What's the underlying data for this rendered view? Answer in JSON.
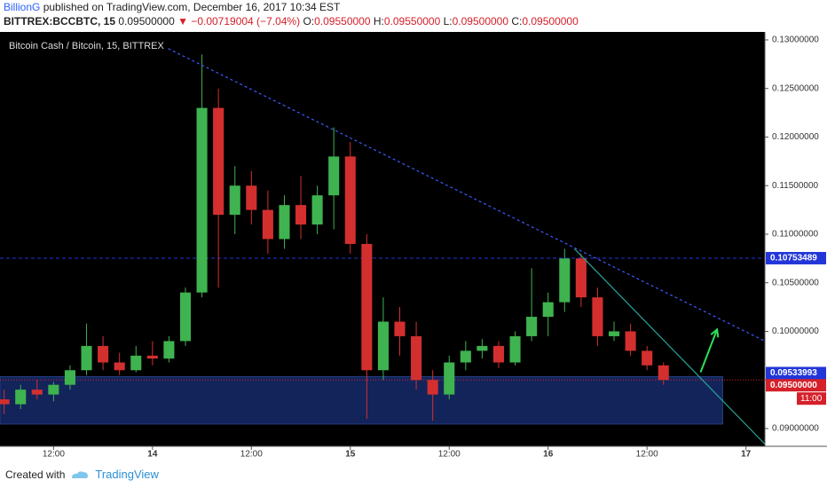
{
  "header": {
    "author": "BillionG",
    "published": "published on TradingView.com, December 16, 2017 10:34 EST",
    "symbol": "BITTREX:BCCBTC, 15",
    "last": "0.09500000",
    "change": "▼ −0.00719004 (−7.04%)",
    "ohlc": [
      {
        "label": "O:",
        "value": "0.09550000"
      },
      {
        "label": "H:",
        "value": "0.09550000"
      },
      {
        "label": "L:",
        "value": "0.09500000"
      },
      {
        "label": "C:",
        "value": "0.09500000"
      }
    ]
  },
  "chart_data": {
    "type": "candlestick",
    "title": "Bitcoin Cash / Bitcoin, 15, BITTREX",
    "x": [
      -18,
      -16,
      -14,
      -12,
      -10,
      -8,
      -6,
      -4,
      -2,
      0,
      2,
      4,
      6,
      8,
      10,
      12,
      14,
      16,
      18,
      20,
      22,
      24,
      26,
      28,
      30,
      32,
      34,
      36,
      38,
      40,
      42,
      44,
      46,
      48,
      50,
      52,
      54,
      56,
      58,
      60,
      62
    ],
    "open": [
      0.093,
      0.0925,
      0.094,
      0.0935,
      0.0945,
      0.096,
      0.0985,
      0.0968,
      0.096,
      0.0975,
      0.0972,
      0.099,
      0.104,
      0.123,
      0.112,
      0.115,
      0.1125,
      0.1095,
      0.113,
      0.111,
      0.114,
      0.118,
      0.109,
      0.096,
      0.101,
      0.0995,
      0.095,
      0.0935,
      0.0968,
      0.098,
      0.0985,
      0.0968,
      0.0995,
      0.1015,
      0.103,
      0.1075,
      0.1035,
      0.0995,
      0.1,
      0.098,
      0.0965
    ],
    "high": [
      0.094,
      0.0945,
      0.095,
      0.0948,
      0.0965,
      0.1008,
      0.0995,
      0.0978,
      0.0985,
      0.099,
      0.0995,
      0.1045,
      0.1285,
      0.125,
      0.117,
      0.1165,
      0.1145,
      0.114,
      0.116,
      0.115,
      0.121,
      0.1195,
      0.11,
      0.1035,
      0.1025,
      0.101,
      0.096,
      0.0975,
      0.099,
      0.0992,
      0.099,
      0.1,
      0.1065,
      0.104,
      0.1085,
      0.108,
      0.1045,
      0.101,
      0.1008,
      0.0985,
      0.0968
    ],
    "low": [
      0.0915,
      0.092,
      0.093,
      0.0928,
      0.094,
      0.0955,
      0.096,
      0.0955,
      0.0958,
      0.0965,
      0.0968,
      0.0985,
      0.1035,
      0.1045,
      0.11,
      0.111,
      0.108,
      0.1085,
      0.1095,
      0.11,
      0.1105,
      0.108,
      0.091,
      0.095,
      0.0975,
      0.094,
      0.0908,
      0.093,
      0.096,
      0.0972,
      0.0962,
      0.0965,
      0.099,
      0.0995,
      0.102,
      0.1025,
      0.0985,
      0.099,
      0.0975,
      0.096,
      0.0945
    ],
    "close": [
      0.0925,
      0.094,
      0.0935,
      0.0945,
      0.096,
      0.0985,
      0.0968,
      0.096,
      0.0975,
      0.0972,
      0.099,
      0.104,
      0.123,
      0.112,
      0.115,
      0.1125,
      0.1095,
      0.113,
      0.111,
      0.114,
      0.118,
      0.109,
      0.096,
      0.101,
      0.0995,
      0.095,
      0.0935,
      0.0968,
      0.098,
      0.0985,
      0.0968,
      0.0995,
      0.1015,
      0.103,
      0.1075,
      0.1035,
      0.0995,
      0.1,
      0.098,
      0.0965,
      0.095
    ],
    "up_color": "#3fb34f",
    "down_color": "#d32f2f",
    "xlim": [
      -18.5,
      74.3
    ],
    "ylim": [
      0.08817,
      0.13082
    ],
    "xticks": [
      {
        "value": -12,
        "label": "12:00"
      },
      {
        "value": 0,
        "label": "14"
      },
      {
        "value": 12,
        "label": "12:00"
      },
      {
        "value": 24,
        "label": "15"
      },
      {
        "value": 36,
        "label": "12:00"
      },
      {
        "value": 48,
        "label": "16"
      },
      {
        "value": 60,
        "label": "12:00"
      },
      {
        "value": 72,
        "label": "17"
      }
    ],
    "yticks": [
      {
        "value": 0.09,
        "label": "0.09000000"
      },
      {
        "value": 0.095,
        "label": "0.09500000"
      },
      {
        "value": 0.1,
        "label": "0.10000000"
      },
      {
        "value": 0.105,
        "label": "0.10500000"
      },
      {
        "value": 0.11,
        "label": "0.11000000"
      },
      {
        "value": 0.115,
        "label": "0.11500000"
      },
      {
        "value": 0.12,
        "label": "0.12000000"
      },
      {
        "value": 0.125,
        "label": "0.12500000"
      },
      {
        "value": 0.13,
        "label": "0.13000000"
      }
    ],
    "zone": {
      "x": [
        -18.5,
        69.2
      ],
      "y": [
        0.09045,
        0.09535
      ],
      "color": "#13245a"
    },
    "trendlines": [
      {
        "x": [
          1.9,
          74.3
        ],
        "y": [
          0.1291,
          0.099
        ],
        "color": "#3d5afe",
        "style": "dashed"
      },
      {
        "x": [
          51.2,
          74.3
        ],
        "y": [
          0.1085,
          0.0884
        ],
        "color": "#26a69a",
        "style": "solid"
      }
    ],
    "arrow": {
      "x": [
        66.5,
        68.5
      ],
      "y": [
        0.0958,
        0.1002
      ],
      "color": "#2ee05a"
    },
    "price_markers": [
      {
        "value": 0.10753489,
        "color": "#2236d8",
        "line": "dashed"
      },
      {
        "value": 0.09533993,
        "color": "#2236d8"
      },
      {
        "value": 0.095,
        "label": "0.09500000",
        "color": "#d5202a",
        "line": "dotted",
        "countdown": "11:00"
      }
    ]
  },
  "footer": {
    "created": "Created with",
    "brand": "TradingView"
  }
}
